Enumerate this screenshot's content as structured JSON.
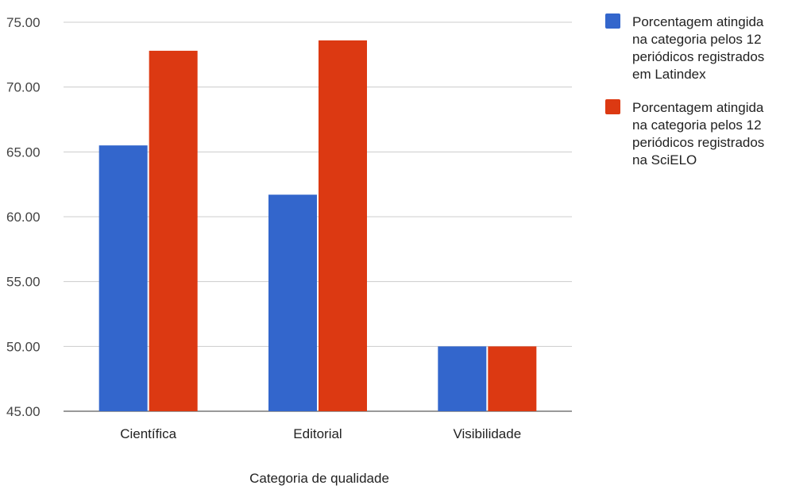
{
  "chart_data": {
    "type": "bar",
    "title": "",
    "xlabel": "Categoria de qualidade",
    "ylabel": "",
    "categories": [
      "Científica",
      "Editorial",
      "Visibilidade"
    ],
    "series": [
      {
        "name": "Porcentagem atingida na categoria pelos 12 periódicos registrados em Latindex",
        "legend_lines": [
          "Porcentagem atingida",
          "na categoria pelos 12",
          "periódicos registrados",
          "em Latindex"
        ],
        "color": "#3366cc",
        "values": [
          65.5,
          61.7,
          50.0
        ]
      },
      {
        "name": "Porcentagem atingida na categoria pelos 12 periódicos registrados na SciELO",
        "legend_lines": [
          "Porcentagem atingida",
          "na categoria pelos 12",
          "periódicos registrados",
          "na SciELO"
        ],
        "color": "#dc3912",
        "values": [
          72.8,
          73.6,
          50.0
        ]
      }
    ],
    "ylim": [
      45,
      75
    ],
    "yticks": [
      "45.00",
      "50.00",
      "55.00",
      "60.00",
      "65.00",
      "70.00",
      "75.00"
    ],
    "grid": true,
    "legend_position": "right"
  }
}
